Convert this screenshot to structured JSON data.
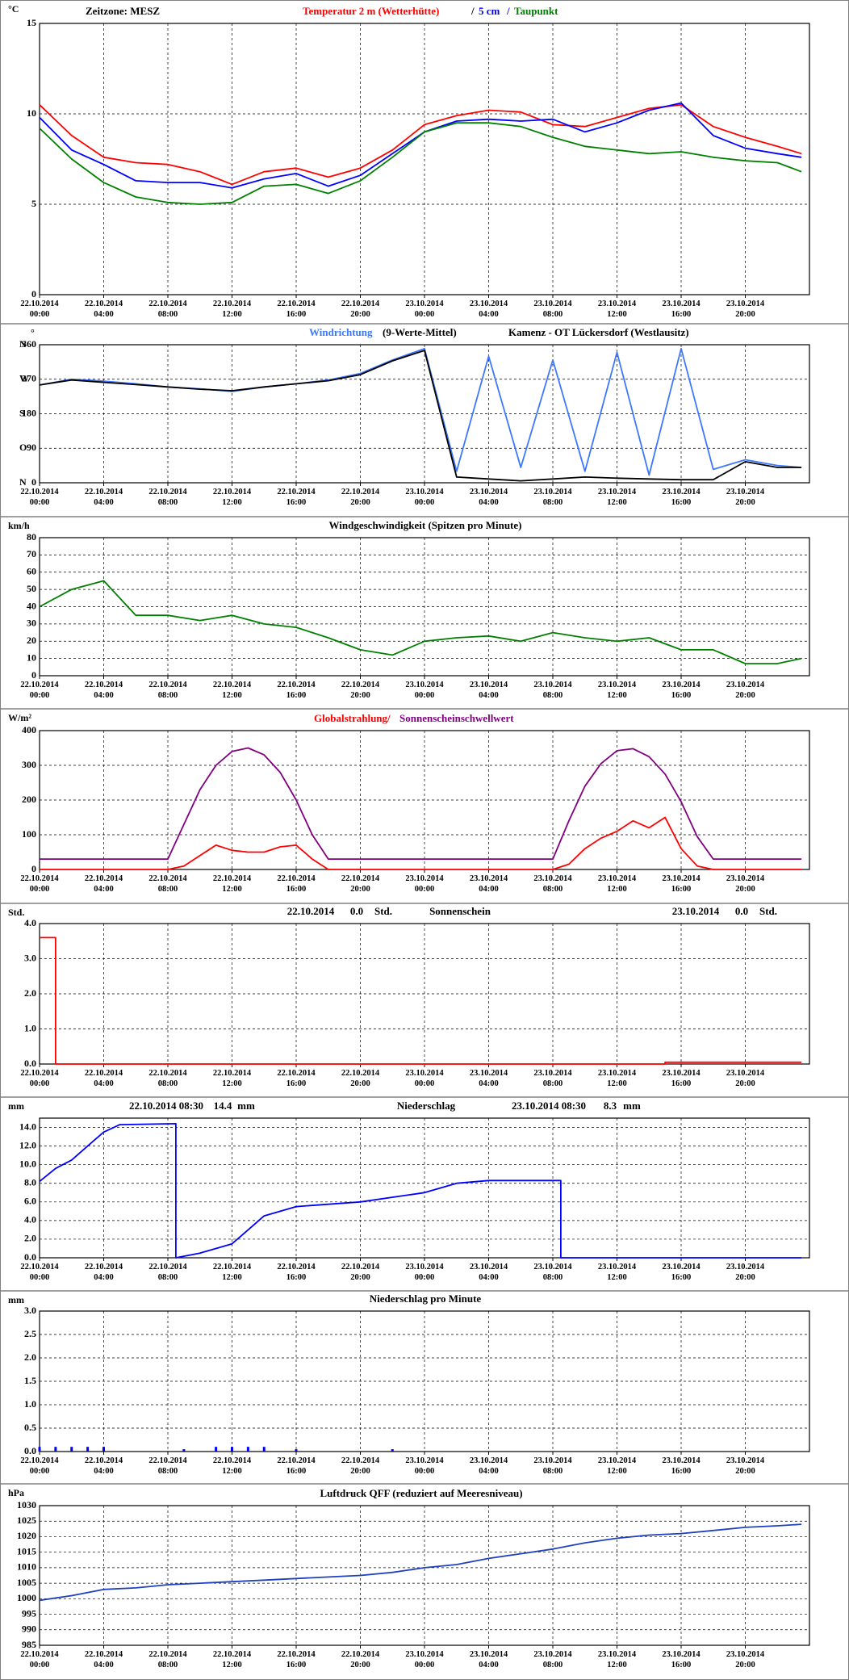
{
  "chart_data": [
    {
      "type": "line",
      "annotation": "Zeitzone: MESZ",
      "y_unit": "°C",
      "legend_separator": "/",
      "x": [
        "22.10.2014 00:00",
        "22.10.2014 02:00",
        "22.10.2014 04:00",
        "22.10.2014 06:00",
        "22.10.2014 08:00",
        "22.10.2014 10:00",
        "22.10.2014 12:00",
        "22.10.2014 14:00",
        "22.10.2014 16:00",
        "22.10.2014 18:00",
        "22.10.2014 20:00",
        "22.10.2014 22:00",
        "23.10.2014 00:00",
        "23.10.2014 02:00",
        "23.10.2014 04:00",
        "23.10.2014 06:00",
        "23.10.2014 08:00",
        "23.10.2014 10:00",
        "23.10.2014 12:00",
        "23.10.2014 14:00",
        "23.10.2014 16:00",
        "23.10.2014 18:00",
        "23.10.2014 20:00",
        "23.10.2014 22:00",
        "23.10.2014 23:30"
      ],
      "series": [
        {
          "name": "Temperatur 2 m (Wetterhütte)",
          "color": "#ff0000",
          "values": [
            10.5,
            8.8,
            7.6,
            7.3,
            7.2,
            6.8,
            6.1,
            6.8,
            7.0,
            6.5,
            7.0,
            8.0,
            9.4,
            9.9,
            10.2,
            10.1,
            9.4,
            9.3,
            9.8,
            10.3,
            10.5,
            9.3,
            8.7,
            8.2,
            7.8
          ]
        },
        {
          "name": "5 cm",
          "color": "#0000ff",
          "values": [
            9.8,
            8.0,
            7.2,
            6.3,
            6.2,
            6.2,
            5.9,
            6.4,
            6.7,
            6.0,
            6.6,
            7.8,
            9.0,
            9.6,
            9.7,
            9.6,
            9.7,
            9.0,
            9.5,
            10.2,
            10.6,
            8.8,
            8.1,
            7.8,
            7.6
          ]
        },
        {
          "name": "Taupunkt",
          "color": "#008000",
          "values": [
            9.2,
            7.5,
            6.2,
            5.4,
            5.1,
            5.0,
            5.1,
            6.0,
            6.1,
            5.6,
            6.3,
            7.6,
            9.0,
            9.5,
            9.5,
            9.3,
            8.7,
            8.2,
            8.0,
            7.8,
            7.9,
            7.6,
            7.4,
            7.3,
            6.8
          ]
        }
      ],
      "xlim": [
        "22.10.2014 00:00",
        "24.10.2014 00:00"
      ],
      "xticks": [
        "22.10.2014 00:00",
        "22.10.2014 04:00",
        "22.10.2014 08:00",
        "22.10.2014 12:00",
        "22.10.2014 16:00",
        "22.10.2014 20:00",
        "23.10.2014 00:00",
        "23.10.2014 04:00",
        "23.10.2014 08:00",
        "23.10.2014 12:00",
        "23.10.2014 16:00",
        "23.10.2014 20:00"
      ],
      "ylim": [
        0,
        15
      ],
      "yticks": [
        0,
        5,
        10,
        15
      ],
      "grid": true
    },
    {
      "type": "line",
      "title": "Kamenz - OT Lückersdorf (Westlausitz)",
      "y_unit": "°",
      "legend_suffix": "(9-Werte-Mittel)",
      "compass_labels": [
        "N",
        "O",
        "S",
        "W",
        "N"
      ],
      "x": [
        "22.10.2014 00:00",
        "22.10.2014 02:00",
        "22.10.2014 04:00",
        "22.10.2014 06:00",
        "22.10.2014 08:00",
        "22.10.2014 10:00",
        "22.10.2014 12:00",
        "22.10.2014 14:00",
        "22.10.2014 16:00",
        "22.10.2014 18:00",
        "22.10.2014 20:00",
        "22.10.2014 22:00",
        "23.10.2014 00:00",
        "23.10.2014 02:00",
        "23.10.2014 04:00",
        "23.10.2014 06:00",
        "23.10.2014 08:00",
        "23.10.2014 10:00",
        "23.10.2014 12:00",
        "23.10.2014 14:00",
        "23.10.2014 16:00",
        "23.10.2014 18:00",
        "23.10.2014 20:00",
        "23.10.2014 22:00",
        "23.10.2014 23:30"
      ],
      "series": [
        {
          "name": "Windrichtung",
          "color": "#3c78ff",
          "values": [
            255,
            270,
            265,
            258,
            250,
            245,
            238,
            250,
            258,
            268,
            285,
            320,
            350,
            30,
            330,
            40,
            320,
            30,
            340,
            20,
            350,
            35,
            60,
            45,
            40
          ]
        },
        {
          "color": "#000000",
          "values": [
            255,
            268,
            262,
            256,
            250,
            244,
            240,
            250,
            258,
            266,
            282,
            318,
            345,
            15,
            10,
            5,
            10,
            15,
            12,
            10,
            8,
            8,
            55,
            40,
            40
          ]
        }
      ],
      "xlim": [
        "22.10.2014 00:00",
        "24.10.2014 00:00"
      ],
      "xticks": [
        "22.10.2014 00:00",
        "22.10.2014 04:00",
        "22.10.2014 08:00",
        "22.10.2014 12:00",
        "22.10.2014 16:00",
        "22.10.2014 20:00",
        "23.10.2014 00:00",
        "23.10.2014 04:00",
        "23.10.2014 08:00",
        "23.10.2014 12:00",
        "23.10.2014 16:00",
        "23.10.2014 20:00"
      ],
      "ylim": [
        0,
        360
      ],
      "yticks": [
        0,
        90,
        180,
        270,
        360
      ],
      "grid": true
    },
    {
      "type": "line",
      "title": "Windgeschwindigkeit (Spitzen pro Minute)",
      "y_unit": "km/h",
      "x": [
        "22.10.2014 00:00",
        "22.10.2014 02:00",
        "22.10.2014 04:00",
        "22.10.2014 06:00",
        "22.10.2014 08:00",
        "22.10.2014 10:00",
        "22.10.2014 12:00",
        "22.10.2014 14:00",
        "22.10.2014 16:00",
        "22.10.2014 18:00",
        "22.10.2014 20:00",
        "22.10.2014 22:00",
        "23.10.2014 00:00",
        "23.10.2014 02:00",
        "23.10.2014 04:00",
        "23.10.2014 06:00",
        "23.10.2014 08:00",
        "23.10.2014 10:00",
        "23.10.2014 12:00",
        "23.10.2014 14:00",
        "23.10.2014 16:00",
        "23.10.2014 18:00",
        "23.10.2014 20:00",
        "23.10.2014 22:00",
        "23.10.2014 23:30"
      ],
      "series": [
        {
          "color": "#008000",
          "values": [
            40,
            50,
            55,
            35,
            35,
            32,
            35,
            30,
            28,
            22,
            15,
            12,
            20,
            22,
            23,
            20,
            25,
            22,
            20,
            22,
            15,
            15,
            7,
            7,
            10
          ]
        }
      ],
      "xlim": [
        "22.10.2014 00:00",
        "24.10.2014 00:00"
      ],
      "xticks": [
        "22.10.2014 00:00",
        "22.10.2014 04:00",
        "22.10.2014 08:00",
        "22.10.2014 12:00",
        "22.10.2014 16:00",
        "22.10.2014 20:00",
        "23.10.2014 00:00",
        "23.10.2014 04:00",
        "23.10.2014 08:00",
        "23.10.2014 12:00",
        "23.10.2014 16:00",
        "23.10.2014 20:00"
      ],
      "ylim": [
        0,
        80
      ],
      "yticks": [
        0,
        10,
        20,
        30,
        40,
        50,
        60,
        70,
        80
      ],
      "grid": true
    },
    {
      "type": "line",
      "y_unit": "W/m²",
      "x": [
        "22.10.2014 00:00",
        "22.10.2014 08:00",
        "22.10.2014 09:00",
        "22.10.2014 10:00",
        "22.10.2014 11:00",
        "22.10.2014 12:00",
        "22.10.2014 13:00",
        "22.10.2014 14:00",
        "22.10.2014 15:00",
        "22.10.2014 16:00",
        "22.10.2014 17:00",
        "22.10.2014 18:00",
        "23.10.2014 08:00",
        "23.10.2014 09:00",
        "23.10.2014 10:00",
        "23.10.2014 11:00",
        "23.10.2014 12:00",
        "23.10.2014 13:00",
        "23.10.2014 14:00",
        "23.10.2014 15:00",
        "23.10.2014 16:00",
        "23.10.2014 17:00",
        "23.10.2014 18:00",
        "23.10.2014 23:30"
      ],
      "series": [
        {
          "name": "Globalstrahlung/",
          "color": "#ff0000",
          "values": [
            0,
            0,
            10,
            40,
            70,
            55,
            50,
            50,
            65,
            70,
            30,
            0,
            0,
            15,
            60,
            90,
            110,
            140,
            120,
            150,
            60,
            10,
            0,
            0
          ]
        },
        {
          "name": "Sonnenscheinschwellwert",
          "color": "#800080",
          "values": [
            30,
            30,
            130,
            230,
            300,
            340,
            350,
            330,
            280,
            200,
            100,
            30,
            30,
            140,
            240,
            305,
            342,
            348,
            325,
            275,
            195,
            95,
            30,
            30
          ]
        }
      ],
      "xlim": [
        "22.10.2014 00:00",
        "24.10.2014 00:00"
      ],
      "xticks": [
        "22.10.2014 00:00",
        "22.10.2014 04:00",
        "22.10.2014 08:00",
        "22.10.2014 12:00",
        "22.10.2014 16:00",
        "22.10.2014 20:00",
        "23.10.2014 00:00",
        "23.10.2014 04:00",
        "23.10.2014 08:00",
        "23.10.2014 12:00",
        "23.10.2014 16:00",
        "23.10.2014 20:00"
      ],
      "ylim": [
        0,
        400
      ],
      "yticks": [
        0,
        100,
        200,
        300,
        400
      ],
      "grid": true
    },
    {
      "type": "line",
      "title": "Sonnenschein",
      "y_unit": "Std.",
      "annotations": [
        "22.10.2014",
        "0.0",
        "Std.",
        "23.10.2014",
        "0.0",
        "Std."
      ],
      "x": [
        "22.10.2014 00:00",
        "22.10.2014 01:00",
        "22.10.2014 01:00",
        "23.10.2014 15:00",
        "23.10.2014 15:00",
        "23.10.2014 23:30"
      ],
      "series": [
        {
          "color": "#ff0000",
          "values": [
            3.6,
            3.6,
            0,
            0,
            0.05,
            0.05
          ]
        }
      ],
      "xlim": [
        "22.10.2014 00:00",
        "24.10.2014 00:00"
      ],
      "xticks": [
        "22.10.2014 00:00",
        "22.10.2014 04:00",
        "22.10.2014 08:00",
        "22.10.2014 12:00",
        "22.10.2014 16:00",
        "22.10.2014 20:00",
        "23.10.2014 00:00",
        "23.10.2014 04:00",
        "23.10.2014 08:00",
        "23.10.2014 12:00",
        "23.10.2014 16:00",
        "23.10.2014 20:00"
      ],
      "ylim": [
        0,
        4
      ],
      "yticks": [
        {
          "value": 0,
          "label": "0.0"
        },
        {
          "value": 1,
          "label": "1.0"
        },
        {
          "value": 2,
          "label": "2.0"
        },
        {
          "value": 3,
          "label": "3.0"
        },
        {
          "value": 4,
          "label": "4.0"
        }
      ],
      "grid": true
    },
    {
      "type": "line",
      "title": "Niederschlag",
      "y_unit": "mm",
      "annotations": [
        "22.10.2014 08:30",
        "14.4",
        "mm",
        "23.10.2014 08:30",
        "8.3",
        "mm"
      ],
      "x": [
        "22.10.2014 00:00",
        "22.10.2014 01:00",
        "22.10.2014 02:00",
        "22.10.2014 03:00",
        "22.10.2014 04:00",
        "22.10.2014 05:00",
        "22.10.2014 08:30",
        "22.10.2014 08:30",
        "22.10.2014 10:00",
        "22.10.2014 12:00",
        "22.10.2014 13:00",
        "22.10.2014 14:00",
        "22.10.2014 16:00",
        "22.10.2014 20:00",
        "23.10.2014 00:00",
        "23.10.2014 02:00",
        "23.10.2014 04:00",
        "23.10.2014 08:30",
        "23.10.2014 08:30",
        "23.10.2014 23:30"
      ],
      "series": [
        {
          "color": "#0000ff",
          "values": [
            8.2,
            9.6,
            10.5,
            12.0,
            13.5,
            14.3,
            14.4,
            0,
            0.5,
            1.5,
            3.0,
            4.5,
            5.5,
            6.0,
            7.0,
            8.0,
            8.3,
            8.3,
            0,
            0
          ]
        }
      ],
      "xlim": [
        "22.10.2014 00:00",
        "24.10.2014 00:00"
      ],
      "xticks": [
        "22.10.2014 00:00",
        "22.10.2014 04:00",
        "22.10.2014 08:00",
        "22.10.2014 12:00",
        "22.10.2014 16:00",
        "22.10.2014 20:00",
        "23.10.2014 00:00",
        "23.10.2014 04:00",
        "23.10.2014 08:00",
        "23.10.2014 12:00",
        "23.10.2014 16:00",
        "23.10.2014 20:00"
      ],
      "ylim": [
        0,
        15
      ],
      "yticks": [
        {
          "value": 0,
          "label": "0.0"
        },
        {
          "value": 2,
          "label": "2.0"
        },
        {
          "value": 4,
          "label": "4.0"
        },
        {
          "value": 6,
          "label": "6.0"
        },
        {
          "value": 8,
          "label": "8.0"
        },
        {
          "value": 10,
          "label": "10.0"
        },
        {
          "value": 12,
          "label": "12.0"
        },
        {
          "value": 14,
          "label": "14.0"
        }
      ],
      "grid": true
    },
    {
      "type": "bar",
      "title": "Niederschlag pro Minute",
      "y_unit": "mm",
      "x": [
        "22.10.2014 00:00",
        "22.10.2014 01:00",
        "22.10.2014 02:00",
        "22.10.2014 03:00",
        "22.10.2014 04:00",
        "22.10.2014 09:00",
        "22.10.2014 11:00",
        "22.10.2014 12:00",
        "22.10.2014 13:00",
        "22.10.2014 14:00",
        "22.10.2014 16:00",
        "22.10.2014 22:00"
      ],
      "series": [
        {
          "color": "#0000ff",
          "values": [
            0.1,
            0.1,
            0.1,
            0.1,
            0.1,
            0.05,
            0.1,
            0.1,
            0.1,
            0.1,
            0.05,
            0.05
          ]
        }
      ],
      "xlim": [
        "22.10.2014 00:00",
        "24.10.2014 00:00"
      ],
      "xticks": [
        "22.10.2014 00:00",
        "22.10.2014 04:00",
        "22.10.2014 08:00",
        "22.10.2014 12:00",
        "22.10.2014 16:00",
        "22.10.2014 20:00",
        "23.10.2014 00:00",
        "23.10.2014 04:00",
        "23.10.2014 08:00",
        "23.10.2014 12:00",
        "23.10.2014 16:00",
        "23.10.2014 20:00"
      ],
      "ylim": [
        0,
        3
      ],
      "yticks": [
        {
          "value": 0,
          "label": "0.0"
        },
        {
          "value": 0.5,
          "label": "0.5"
        },
        {
          "value": 1,
          "label": "1.0"
        },
        {
          "value": 1.5,
          "label": "1.5"
        },
        {
          "value": 2,
          "label": "2.0"
        },
        {
          "value": 2.5,
          "label": "2.5"
        },
        {
          "value": 3,
          "label": "3.0"
        }
      ],
      "grid": true
    },
    {
      "type": "line",
      "title": "Luftdruck QFF (reduziert auf Meeresniveau)",
      "y_unit": "hPa",
      "x": [
        "22.10.2014 00:00",
        "22.10.2014 02:00",
        "22.10.2014 04:00",
        "22.10.2014 06:00",
        "22.10.2014 08:00",
        "22.10.2014 10:00",
        "22.10.2014 12:00",
        "22.10.2014 14:00",
        "22.10.2014 16:00",
        "22.10.2014 18:00",
        "22.10.2014 20:00",
        "22.10.2014 22:00",
        "23.10.2014 00:00",
        "23.10.2014 02:00",
        "23.10.2014 04:00",
        "23.10.2014 06:00",
        "23.10.2014 08:00",
        "23.10.2014 10:00",
        "23.10.2014 12:00",
        "23.10.2014 14:00",
        "23.10.2014 16:00",
        "23.10.2014 18:00",
        "23.10.2014 20:00",
        "23.10.2014 22:00",
        "23.10.2014 23:30"
      ],
      "series": [
        {
          "color": "#2040c0",
          "values": [
            999.5,
            1001,
            1003,
            1003.5,
            1004.5,
            1005,
            1005.5,
            1006,
            1006.5,
            1007,
            1007.5,
            1008.5,
            1010,
            1011,
            1013,
            1014.5,
            1016,
            1018,
            1019.5,
            1020.5,
            1021,
            1022,
            1023,
            1023.5,
            1024
          ]
        }
      ],
      "xlim": [
        "22.10.2014 00:00",
        "24.10.2014 00:00"
      ],
      "xticks": [
        "22.10.2014 00:00",
        "22.10.2014 04:00",
        "22.10.2014 08:00",
        "22.10.2014 12:00",
        "22.10.2014 16:00",
        "22.10.2014 20:00",
        "23.10.2014 00:00",
        "23.10.2014 04:00",
        "23.10.2014 08:00",
        "23.10.2014 12:00",
        "23.10.2014 16:00",
        "23.10.2014 20:00"
      ],
      "ylim": [
        985,
        1030
      ],
      "yticks": [
        985,
        990,
        995,
        1000,
        1005,
        1010,
        1015,
        1020,
        1025,
        1030
      ],
      "grid": true
    }
  ]
}
